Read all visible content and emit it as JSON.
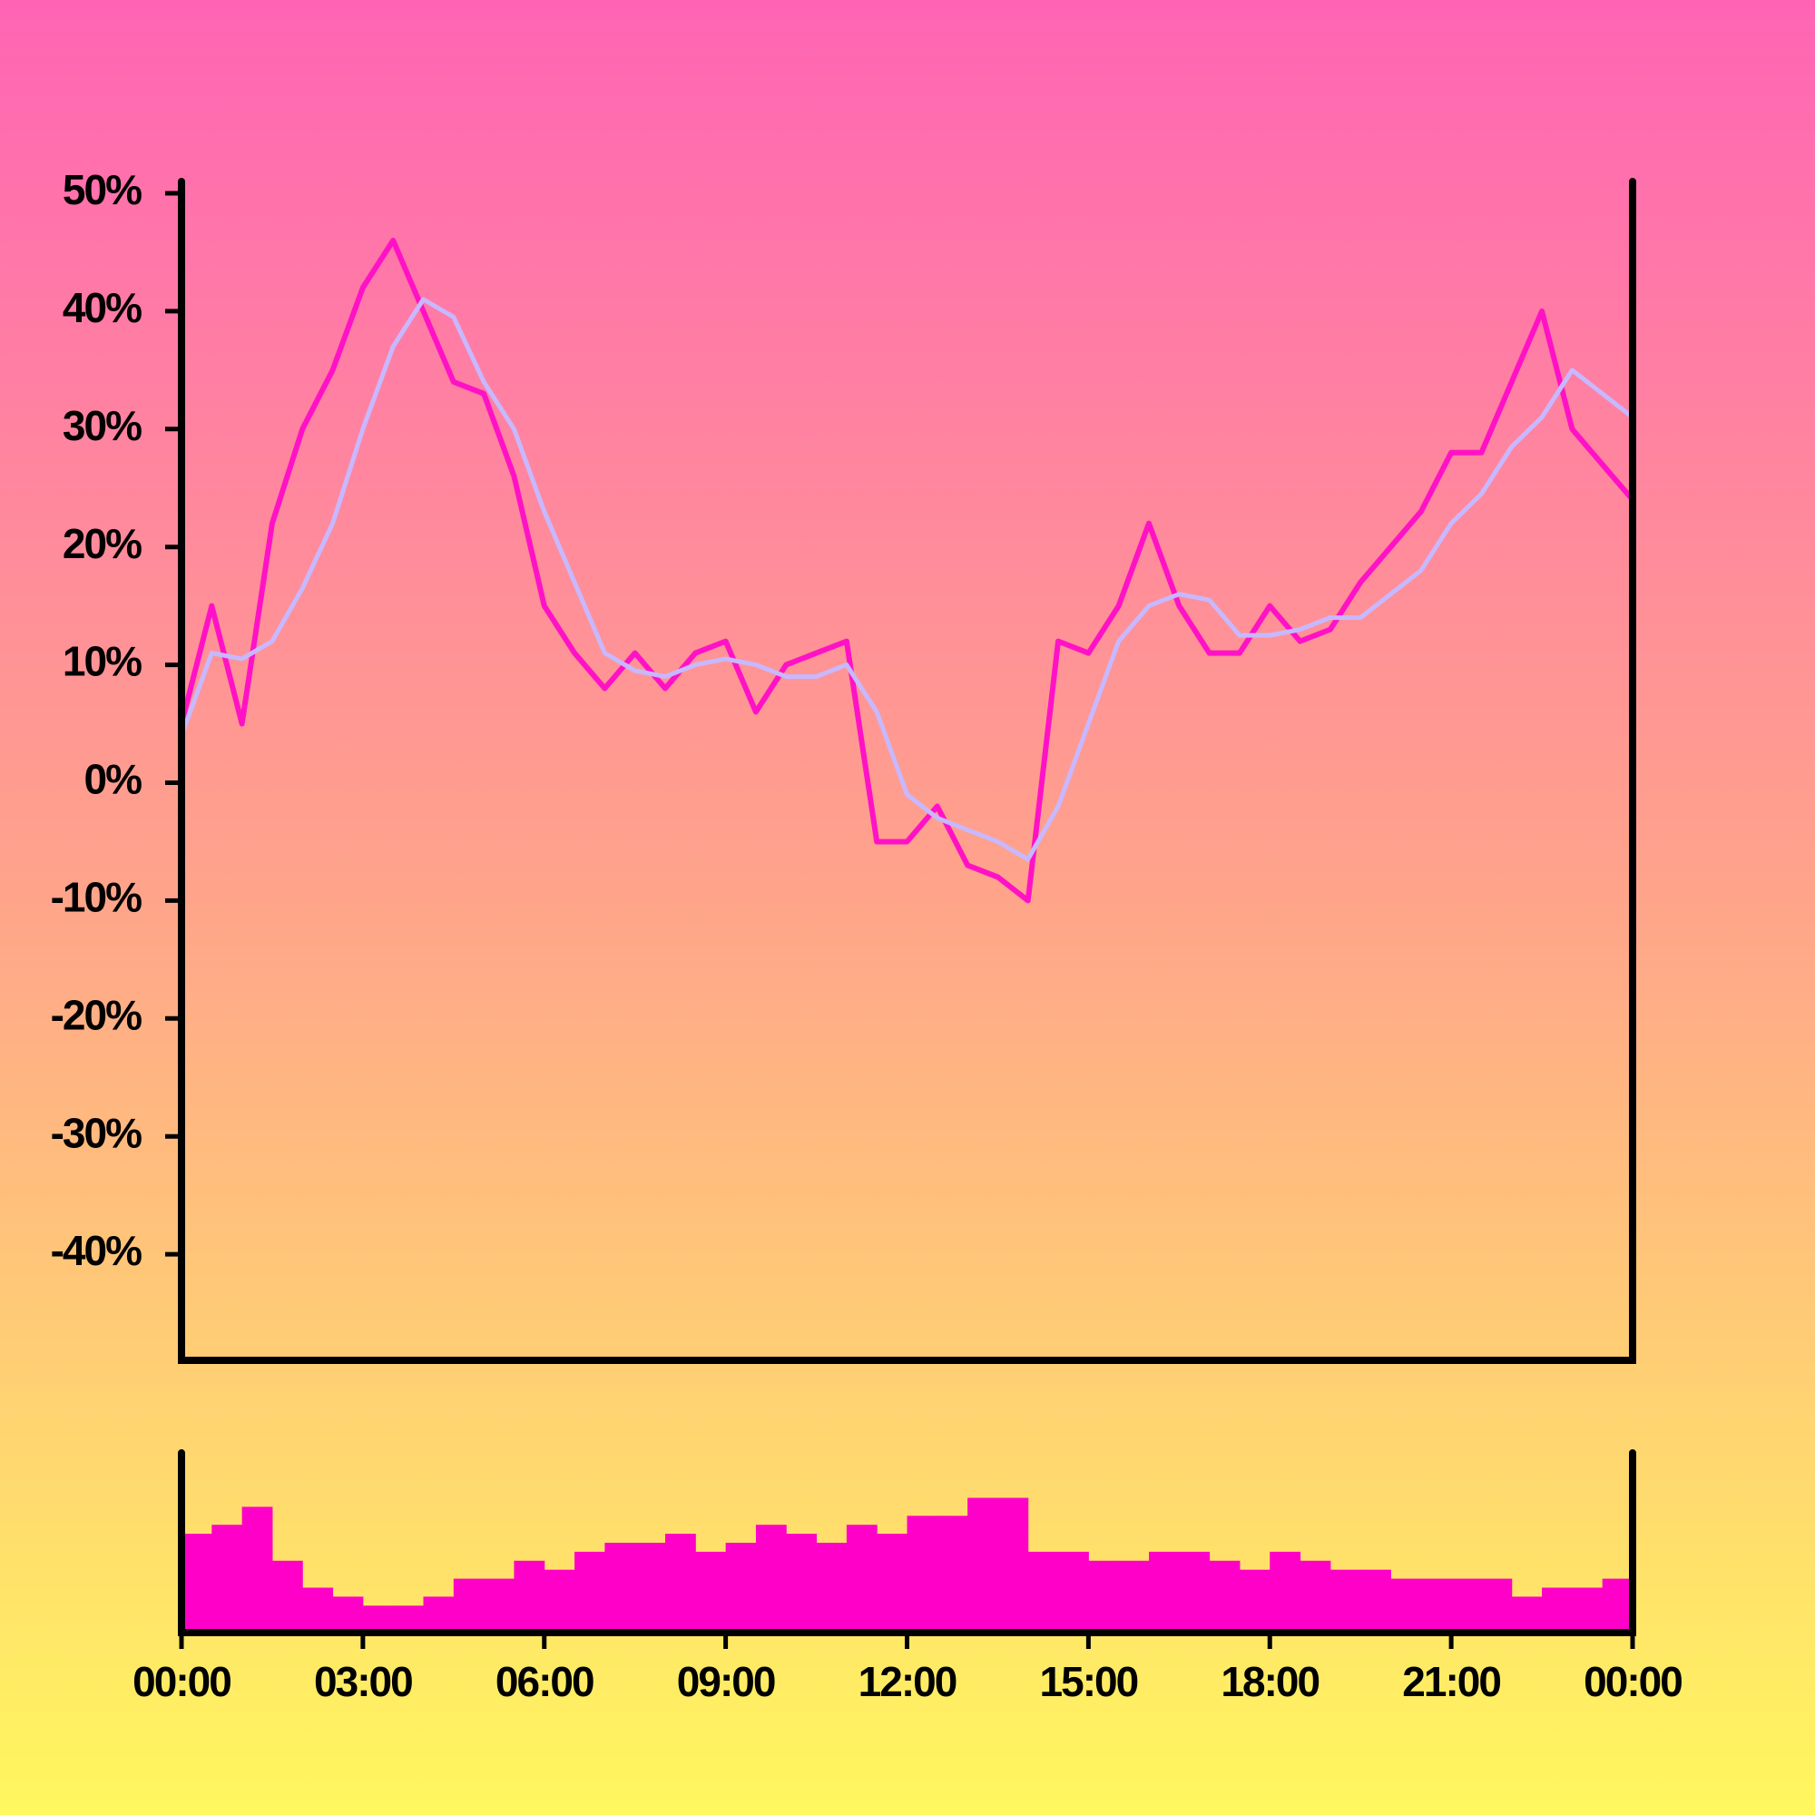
{
  "chart_data": [
    {
      "type": "line",
      "x": [
        0,
        0.5,
        1,
        1.5,
        2,
        2.5,
        3,
        3.5,
        4,
        4.5,
        5,
        5.5,
        6,
        6.5,
        7,
        7.5,
        8,
        8.5,
        9,
        9.5,
        10,
        10.5,
        11,
        11.5,
        12,
        12.5,
        13,
        13.5,
        14,
        14.5,
        15,
        15.5,
        16,
        16.5,
        17,
        17.5,
        18,
        18.5,
        19,
        19.5,
        20,
        20.5,
        21,
        21.5,
        22,
        22.5,
        23,
        23.5,
        24
      ],
      "series": [
        {
          "color": "#ff12c6",
          "values": [
            5,
            15,
            5,
            22,
            30,
            35,
            42,
            46,
            40,
            34,
            33,
            26,
            15,
            11,
            8,
            11,
            8,
            11,
            12,
            6,
            10,
            11,
            12,
            -5,
            -5,
            -2,
            -7,
            -8,
            -10,
            12,
            11,
            15,
            22,
            15,
            11,
            11,
            15,
            12,
            13,
            17,
            20,
            23,
            28,
            28,
            34,
            40,
            30,
            27,
            24
          ]
        },
        {
          "color": "#c8b8ff",
          "values": [
            4,
            11,
            10.5,
            12,
            16.5,
            22,
            30,
            37,
            41,
            39.5,
            34,
            30,
            23,
            17,
            11,
            9.5,
            9,
            10,
            10.5,
            10,
            9,
            9,
            10,
            6,
            -1,
            -3,
            -4,
            -5,
            -6.5,
            -2,
            5,
            12,
            15,
            16,
            15.5,
            12.5,
            12.5,
            13,
            14,
            14,
            16,
            18,
            22,
            24.5,
            28.5,
            31,
            35,
            33,
            31
          ]
        }
      ],
      "xlim": [
        0,
        24
      ],
      "xticks": [
        {
          "value": 0,
          "label": "00:00"
        },
        {
          "value": 3,
          "label": "03:00"
        },
        {
          "value": 6,
          "label": "06:00"
        },
        {
          "value": 9,
          "label": "09:00"
        },
        {
          "value": 12,
          "label": "12:00"
        },
        {
          "value": 15,
          "label": "15:00"
        },
        {
          "value": 18,
          "label": "18:00"
        },
        {
          "value": 21,
          "label": "21:00"
        },
        {
          "value": 24,
          "label": "00:00"
        }
      ],
      "ylim": [
        -49,
        51
      ],
      "yticks": [
        {
          "value": -40,
          "label": "-40%"
        },
        {
          "value": -30,
          "label": "-30%"
        },
        {
          "value": -20,
          "label": "-20%"
        },
        {
          "value": -10,
          "label": "-10%"
        },
        {
          "value": 0,
          "label": "0%"
        },
        {
          "value": 10,
          "label": "10%"
        },
        {
          "value": 20,
          "label": "20%"
        },
        {
          "value": 30,
          "label": "30%"
        },
        {
          "value": 40,
          "label": "40%"
        },
        {
          "value": 50,
          "label": "50%"
        }
      ]
    },
    {
      "type": "histogram",
      "bins": [
        0,
        0.5,
        1,
        1.5,
        2,
        2.5,
        3,
        3.5,
        4,
        4.5,
        5,
        5.5,
        6,
        6.5,
        7,
        7.5,
        8,
        8.5,
        9,
        9.5,
        10,
        10.5,
        11,
        11.5,
        12,
        12.5,
        13,
        13.5,
        14,
        14.5,
        15,
        15.5,
        16,
        16.5,
        17,
        17.5,
        18,
        18.5,
        19,
        19.5,
        20,
        20.5,
        21,
        21.5,
        22,
        22.5,
        23,
        23.5,
        24
      ],
      "values": [
        55,
        60,
        70,
        40,
        25,
        20,
        15,
        15,
        20,
        30,
        30,
        40,
        35,
        45,
        50,
        50,
        55,
        45,
        50,
        60,
        55,
        50,
        60,
        55,
        65,
        65,
        75,
        75,
        45,
        45,
        40,
        40,
        45,
        45,
        40,
        35,
        45,
        40,
        35,
        35,
        30,
        30,
        30,
        30,
        20,
        25,
        25,
        30
      ],
      "color": "#ff00c8",
      "ylim": [
        0,
        100
      ]
    }
  ]
}
